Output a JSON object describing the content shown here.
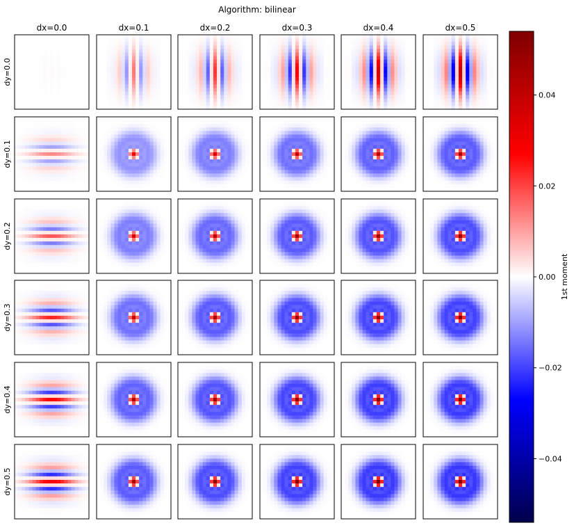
{
  "chart_data": {
    "type": "heatmap",
    "title": "Algorithm: bilinear",
    "column_labels": [
      "dx=0.0",
      "dx=0.1",
      "dx=0.2",
      "dx=0.3",
      "dx=0.4",
      "dx=0.5"
    ],
    "row_labels": [
      "dy=0.0",
      "dy=0.1",
      "dy=0.2",
      "dy=0.3",
      "dy=0.4",
      "dy=0.5"
    ],
    "dx": [
      0.0,
      0.1,
      0.2,
      0.3,
      0.4,
      0.5
    ],
    "dy": [
      0.0,
      0.1,
      0.2,
      0.3,
      0.4,
      0.5
    ],
    "colorbar": {
      "label": "1st moment",
      "colormap": "seismic",
      "vmin": -0.054,
      "vmax": 0.054,
      "ticks": [
        -0.04,
        -0.02,
        0.0,
        0.02,
        0.04
      ],
      "tick_labels": [
        "−0.04",
        "−0.02",
        "0.00",
        "0.02",
        "0.04"
      ]
    },
    "peak_values": [
      [
        0.001,
        0.016,
        0.024,
        0.031,
        0.038,
        0.042
      ],
      [
        0.014,
        0.03,
        0.036,
        0.04,
        0.044,
        0.046
      ],
      [
        0.02,
        0.036,
        0.042,
        0.046,
        0.048,
        0.05
      ],
      [
        0.026,
        0.04,
        0.046,
        0.05,
        0.052,
        0.053
      ],
      [
        0.03,
        0.044,
        0.048,
        0.052,
        0.054,
        0.055
      ],
      [
        0.032,
        0.046,
        0.05,
        0.053,
        0.055,
        0.056
      ]
    ],
    "grid": false
  }
}
